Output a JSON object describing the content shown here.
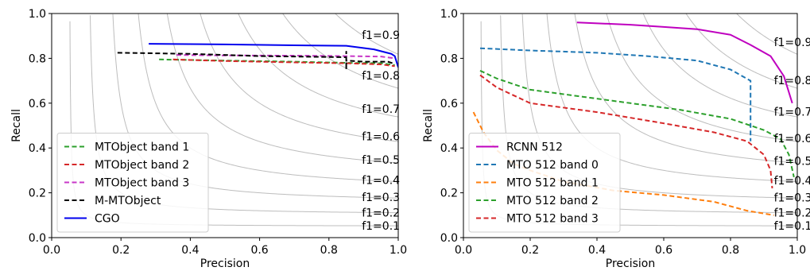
{
  "chart_data": [
    {
      "type": "line",
      "xlabel": "Precision",
      "ylabel": "Recall",
      "xlim": [
        0,
        1
      ],
      "ylim": [
        0,
        1
      ],
      "xticks": [
        "0.0",
        "0.2",
        "0.4",
        "0.6",
        "0.8",
        "1.0"
      ],
      "yticks": [
        "0.0",
        "0.2",
        "0.4",
        "0.6",
        "0.8",
        "1.0"
      ],
      "grid": false,
      "legend": "lower-left",
      "iso_f1": [
        {
          "f": 0.9,
          "label": "f1=0.9"
        },
        {
          "f": 0.8,
          "label": "f1=0.8"
        },
        {
          "f": 0.7,
          "label": "f1=0.7"
        },
        {
          "f": 0.6,
          "label": "f1=0.6"
        },
        {
          "f": 0.5,
          "label": "f1=0.5"
        },
        {
          "f": 0.4,
          "label": "f1=0.4"
        },
        {
          "f": 0.3,
          "label": "f1=0.3"
        },
        {
          "f": 0.2,
          "label": "f1=0.2"
        },
        {
          "f": 0.1,
          "label": "f1=0.1"
        }
      ],
      "series": [
        {
          "name": "MTObject band 1",
          "color": "#2ca02c",
          "dashed": true,
          "x": [
            0.31,
            0.5,
            0.7,
            0.85,
            0.95,
            0.99
          ],
          "y": [
            0.795,
            0.79,
            0.785,
            0.78,
            0.778,
            0.77
          ]
        },
        {
          "name": "MTObject band 2",
          "color": "#d62728",
          "dashed": true,
          "x": [
            0.35,
            0.5,
            0.7,
            0.85,
            0.95,
            0.99
          ],
          "y": [
            0.795,
            0.788,
            0.782,
            0.778,
            0.773,
            0.765
          ]
        },
        {
          "name": "MTObject band 3",
          "color": "#c837c8",
          "dashed": true,
          "x": [
            0.36,
            0.5,
            0.7,
            0.85,
            0.95,
            0.99
          ],
          "y": [
            0.815,
            0.813,
            0.812,
            0.81,
            0.808,
            0.8
          ]
        },
        {
          "name": "M-MTObject",
          "color": "#000000",
          "dashed": true,
          "x": [
            0.19,
            0.4,
            0.6,
            0.85,
            0.85,
            0.85,
            0.85,
            0.9,
            0.97,
            0.99
          ],
          "y": [
            0.825,
            0.82,
            0.81,
            0.805,
            0.75,
            0.83,
            0.79,
            0.785,
            0.785,
            0.775
          ]
        },
        {
          "name": "CGO",
          "color": "#0000ee",
          "dashed": false,
          "x": [
            0.28,
            0.5,
            0.7,
            0.85,
            0.93,
            0.98,
            0.99,
            1.0
          ],
          "y": [
            0.865,
            0.862,
            0.858,
            0.856,
            0.84,
            0.82,
            0.81,
            0.76
          ]
        }
      ]
    },
    {
      "type": "line",
      "xlabel": "Precision",
      "ylabel": "Recall",
      "xlim": [
        0,
        1
      ],
      "ylim": [
        0,
        1
      ],
      "xticks": [
        "0.0",
        "0.2",
        "0.4",
        "0.6",
        "0.8",
        "1.0"
      ],
      "yticks": [
        "0.0",
        "0.2",
        "0.4",
        "0.6",
        "0.8",
        "1.0"
      ],
      "grid": false,
      "legend": "lower-left",
      "iso_f1": [
        {
          "f": 0.9,
          "label": "f1=0.9"
        },
        {
          "f": 0.8,
          "label": "f1=0.8"
        },
        {
          "f": 0.7,
          "label": "f1=0.7"
        },
        {
          "f": 0.6,
          "label": "f1=0.6"
        },
        {
          "f": 0.5,
          "label": "f1=0.5"
        },
        {
          "f": 0.4,
          "label": "f1=0.4"
        },
        {
          "f": 0.3,
          "label": "f1=0.3"
        },
        {
          "f": 0.2,
          "label": "f1=0.2"
        },
        {
          "f": 0.1,
          "label": "f1=0.1"
        }
      ],
      "series": [
        {
          "name": "RCNN 512",
          "color": "#bf00bf",
          "dashed": false,
          "x": [
            0.34,
            0.5,
            0.6,
            0.7,
            0.8,
            0.86,
            0.92,
            0.96,
            0.985
          ],
          "y": [
            0.96,
            0.95,
            0.94,
            0.93,
            0.905,
            0.86,
            0.81,
            0.72,
            0.6
          ]
        },
        {
          "name": "MTO 512 band 0",
          "color": "#1f77b4",
          "dashed": true,
          "x": [
            0.05,
            0.2,
            0.4,
            0.55,
            0.7,
            0.8,
            0.86,
            0.86,
            0.86
          ],
          "y": [
            0.845,
            0.835,
            0.825,
            0.81,
            0.79,
            0.75,
            0.7,
            0.55,
            0.43
          ]
        },
        {
          "name": "MTO 512 band 1",
          "color": "#ff7f0e",
          "dashed": true,
          "x": [
            0.03,
            0.06,
            0.1,
            0.15,
            0.2,
            0.3,
            0.45,
            0.6,
            0.75,
            0.85,
            0.93
          ],
          "y": [
            0.56,
            0.47,
            0.39,
            0.33,
            0.3,
            0.25,
            0.21,
            0.19,
            0.16,
            0.12,
            0.1
          ]
        },
        {
          "name": "MTO 512 band 2",
          "color": "#2ca02c",
          "dashed": true,
          "x": [
            0.05,
            0.1,
            0.2,
            0.35,
            0.5,
            0.65,
            0.8,
            0.9,
            0.95,
            0.975,
            0.99
          ],
          "y": [
            0.745,
            0.71,
            0.66,
            0.63,
            0.6,
            0.57,
            0.53,
            0.48,
            0.44,
            0.37,
            0.27
          ]
        },
        {
          "name": "MTO 512 band 3",
          "color": "#d62728",
          "dashed": true,
          "x": [
            0.05,
            0.1,
            0.2,
            0.4,
            0.6,
            0.75,
            0.85,
            0.9,
            0.92,
            0.925
          ],
          "y": [
            0.725,
            0.67,
            0.6,
            0.56,
            0.51,
            0.47,
            0.43,
            0.37,
            0.3,
            0.22
          ]
        }
      ]
    }
  ]
}
